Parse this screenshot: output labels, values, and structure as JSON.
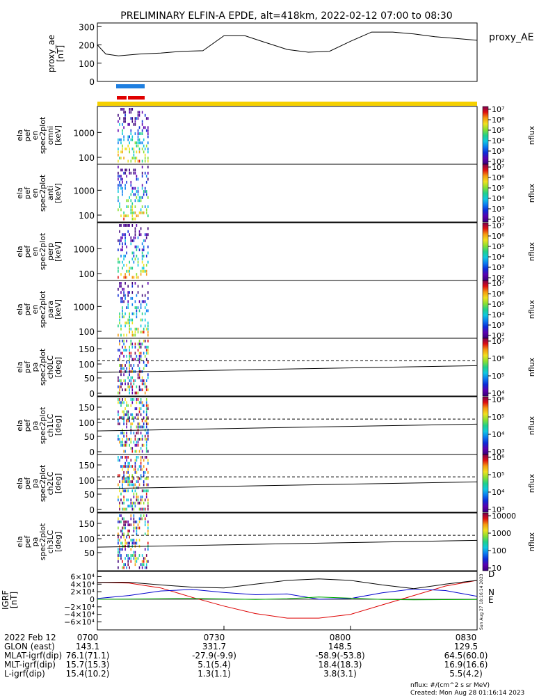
{
  "title": "PRELIMINARY ELFIN-A EPDE, alt=418km, 2022-02-12 07:00 to 08:30",
  "panels": {
    "proxy_ae": {
      "ylabel": [
        "proxy_ae",
        "[nT]"
      ],
      "ticks": [
        "0",
        "100",
        "200",
        "300"
      ],
      "legend": "proxy_AE"
    },
    "spectra": [
      {
        "ylabel": [
          "ela",
          "pef",
          "en",
          "spec2plot",
          "omni",
          "[keV]"
        ],
        "ticks": [
          "100",
          "1000"
        ]
      },
      {
        "ylabel": [
          "ela",
          "pef",
          "en",
          "spec2plot",
          "anti",
          "[keV]"
        ],
        "ticks": [
          "100",
          "1000"
        ]
      },
      {
        "ylabel": [
          "ela",
          "pef",
          "en",
          "spec2plot",
          "perp",
          "[keV]"
        ],
        "ticks": [
          "100",
          "1000"
        ]
      },
      {
        "ylabel": [
          "ela",
          "pef",
          "en",
          "spec2plot",
          "para",
          "[keV]"
        ],
        "ticks": [
          "100",
          "1000"
        ]
      },
      {
        "ylabel": [
          "ela",
          "pef",
          "pa",
          "spec2plot",
          "ch0LC",
          "[deg]"
        ],
        "ticks": [
          "0",
          "50",
          "100",
          "150"
        ]
      },
      {
        "ylabel": [
          "ela",
          "pef",
          "pa",
          "spec2plot",
          "ch1LC",
          "[deg]"
        ],
        "ticks": [
          "0",
          "50",
          "100",
          "150"
        ]
      },
      {
        "ylabel": [
          "ela",
          "pef",
          "pa",
          "spec2plot",
          "ch2LC",
          "[deg]"
        ],
        "ticks": [
          "0",
          "50",
          "100",
          "150"
        ]
      },
      {
        "ylabel": [
          "ela",
          "pef",
          "pa",
          "spec2plot",
          "ch3LC",
          "[deg]"
        ],
        "ticks": [
          "50",
          "100",
          "150"
        ]
      }
    ],
    "colorbars": [
      {
        "label": "nflux",
        "ticks": [
          "10²",
          "10³",
          "10⁴",
          "10⁵",
          "10⁶",
          "10⁷"
        ]
      },
      {
        "label": "nflux",
        "ticks": [
          "10²",
          "10³",
          "10⁴",
          "10⁵",
          "10⁶",
          "10⁷"
        ]
      },
      {
        "label": "nflux",
        "ticks": [
          "10²",
          "10³",
          "10⁴",
          "10⁵",
          "10⁶",
          "10⁷"
        ]
      },
      {
        "label": "nflux",
        "ticks": [
          "10²",
          "10³",
          "10⁴",
          "10⁵",
          "10⁶",
          "10⁷"
        ]
      },
      {
        "label": "nflux",
        "ticks": [
          "10⁴",
          "10⁵",
          "10⁶",
          "10⁷"
        ]
      },
      {
        "label": "nflux",
        "ticks": [
          "10³",
          "10⁴",
          "10⁵",
          "10⁶"
        ]
      },
      {
        "label": "nflux",
        "ticks": [
          "10³",
          "10⁴",
          "10⁵",
          "10⁶"
        ]
      },
      {
        "label": "nflux",
        "ticks": [
          "10",
          "100",
          "1000",
          "10000"
        ]
      }
    ],
    "igrf": {
      "ylabel": [
        "IGRF",
        "[nT]"
      ],
      "ticks": [
        "−6×10⁴",
        "−4×10⁴",
        "−2×10⁴",
        "0",
        "2×10⁴",
        "4×10⁴",
        "6×10⁴"
      ],
      "components": [
        "D",
        "N",
        "E"
      ],
      "component_colors": [
        "#dd0000",
        "#0000cc",
        "#00aa00"
      ],
      "side_note": "Sun Aug 27 18:16:14 2023"
    }
  },
  "footer": {
    "rows": [
      {
        "label": "2022 Feb 12",
        "values": [
          "0700",
          "0730",
          "0800",
          "0830"
        ]
      },
      {
        "label": "GLON (east)",
        "values": [
          "143.1",
          "331.7",
          "148.5",
          "129.5"
        ]
      },
      {
        "label": "MLAT-igrf(dip)",
        "values": [
          "76.1(71.1)",
          "-27.9(-9.9)",
          "-58.9(-53.8)",
          "64.5(60.0)"
        ]
      },
      {
        "label": "MLT-igrf(dip)",
        "values": [
          "15.7(15.3)",
          "5.1(5.4)",
          "18.4(18.3)",
          "16.9(16.6)"
        ]
      },
      {
        "label": "L-igrf(dip)",
        "values": [
          "15.4(10.2)",
          "1.3(1.1)",
          "3.8(3.1)",
          "5.5(4.2)"
        ]
      }
    ],
    "note1": "nflux: #/(cm^2 s sr MeV)",
    "note2": "Created: Mon Aug 28 01:16:14 2023"
  },
  "chart_data": {
    "type": "line",
    "title": "PRELIMINARY ELFIN-A EPDE, alt=418km, 2022-02-12 07:00 to 08:30",
    "x_ticks": [
      "0700",
      "0730",
      "0800",
      "0830"
    ],
    "proxy_ae": {
      "time_min": [
        0,
        2,
        5,
        10,
        15,
        20,
        25,
        30,
        35,
        40,
        45,
        50,
        55,
        60,
        65,
        70,
        75,
        80,
        85,
        90
      ],
      "values": [
        200,
        150,
        140,
        150,
        155,
        165,
        168,
        250,
        250,
        212,
        175,
        160,
        165,
        220,
        270,
        270,
        260,
        245,
        235,
        225
      ],
      "ylim": [
        0,
        320
      ]
    },
    "igrf": {
      "time_min": [
        0,
        7.5,
        15,
        22.5,
        30,
        37.5,
        45,
        52.5,
        60,
        67.5,
        75,
        82.5,
        90
      ],
      "series": [
        {
          "name": "D",
          "values": [
            45000,
            43000,
            30000,
            5000,
            -18000,
            -38000,
            -50000,
            -50000,
            -40000,
            -15000,
            10000,
            35000,
            50000
          ]
        },
        {
          "name": "N",
          "values": [
            2000,
            10000,
            22000,
            26000,
            18000,
            12000,
            14000,
            0,
            2000,
            17000,
            27000,
            23000,
            8000
          ]
        },
        {
          "name": "E",
          "values": [
            0,
            500,
            1500,
            2000,
            1000,
            -500,
            1500,
            6000,
            3000,
            -500,
            -1500,
            -1000,
            -500
          ]
        },
        {
          "name": "total",
          "values": [
            45000,
            45000,
            38000,
            32000,
            30000,
            40000,
            50000,
            54000,
            50000,
            38000,
            28000,
            40000,
            50000
          ]
        }
      ],
      "ylim": [
        -70000,
        70000
      ]
    },
    "pitch_angle_reference": {
      "dashed_deg": 110,
      "solid_deg_start": 70,
      "solid_deg_end": 93
    }
  }
}
